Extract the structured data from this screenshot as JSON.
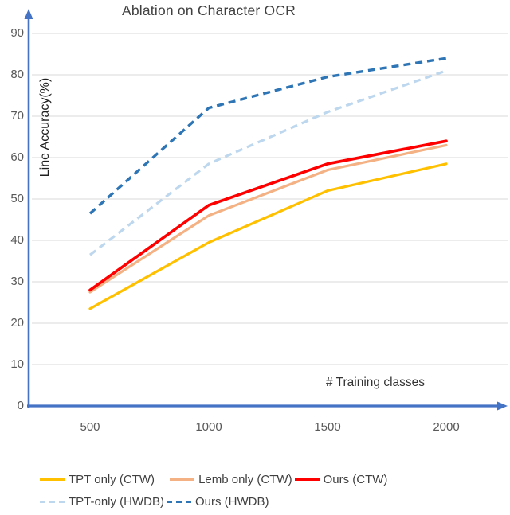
{
  "title": "Ablation on Character OCR",
  "chart_data": {
    "type": "line",
    "title": "Ablation on Character OCR",
    "xlabel": "# Training classes",
    "ylabel": "Line Accuracy(%)",
    "x": [
      500,
      1000,
      1500,
      2000
    ],
    "x_tick_labels": [
      "500",
      "1000",
      "1500",
      "2000"
    ],
    "y_ticks": [
      0,
      10,
      20,
      30,
      40,
      50,
      60,
      70,
      80,
      90
    ],
    "ylim": [
      0,
      90
    ],
    "grid": true,
    "legend_position": "bottom",
    "axis_color": "#4472C4",
    "gridline_color": "#D9D9D9",
    "series": [
      {
        "name": "TPT only (CTW)",
        "color": "#FFC000",
        "style": "solid",
        "width": 3.2,
        "values": [
          23.5,
          39.5,
          52.0,
          58.5
        ]
      },
      {
        "name": "Lemb only (CTW)",
        "color": "#F4B183",
        "style": "solid",
        "width": 3.2,
        "values": [
          27.5,
          46.0,
          57.0,
          63.0
        ]
      },
      {
        "name": "Ours (CTW)",
        "color": "#FF0000",
        "style": "solid",
        "width": 3.6,
        "values": [
          28.0,
          48.5,
          58.5,
          64.0
        ]
      },
      {
        "name": "TPT-only (HWDB)",
        "color": "#BDD7EE",
        "style": "dashed",
        "width": 3.2,
        "values": [
          36.5,
          58.5,
          71.0,
          81.0
        ]
      },
      {
        "name": "Ours (HWDB)",
        "color": "#2E75B6",
        "style": "dashed",
        "width": 3.4,
        "values": [
          46.5,
          72.0,
          79.5,
          84.0
        ]
      }
    ],
    "legend_rows": [
      [
        0,
        1,
        2
      ],
      [
        3,
        4
      ]
    ]
  }
}
